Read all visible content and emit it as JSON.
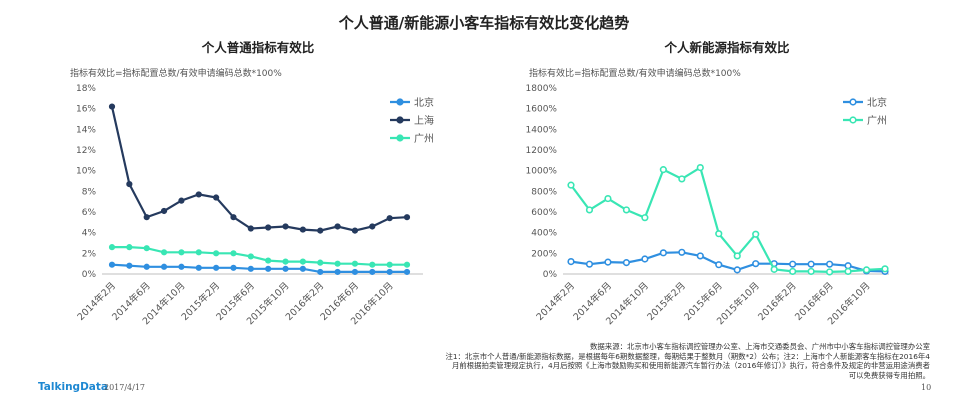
{
  "page_title": "个人普通/新能源小客车指标有效比变化趋势",
  "chart_data": [
    {
      "type": "line",
      "title": "个人普通指标有效比",
      "formula": "指标有效比=指标配置总数/有效申请编码总数*100%",
      "y_unit": "%",
      "ylim": [
        0,
        18
      ],
      "y_ticks": [
        0,
        2,
        4,
        6,
        8,
        10,
        12,
        14,
        16,
        18
      ],
      "grid": false,
      "legend_position": "top-right",
      "x_tick_labels": [
        "2014年2月",
        "2014年6月",
        "2014年10月",
        "2015年2月",
        "2015年6月",
        "2015年10月",
        "2016年2月",
        "2016年6月",
        "2016年10月"
      ],
      "series": [
        {
          "name": "北京",
          "color": "#2f8fe0",
          "values": [
            0.9,
            0.8,
            0.7,
            0.7,
            0.7,
            0.6,
            0.6,
            0.6,
            0.5,
            0.5,
            0.5,
            0.5,
            0.2,
            0.2,
            0.2,
            0.2,
            0.2,
            0.2
          ]
        },
        {
          "name": "上海",
          "color": "#253a5e",
          "values": [
            16.2,
            8.7,
            5.5,
            6.1,
            7.1,
            7.7,
            7.4,
            5.5,
            4.4,
            4.5,
            4.6,
            4.3,
            4.2,
            4.6,
            4.2,
            4.6,
            5.4,
            5.5
          ]
        },
        {
          "name": "广州",
          "color": "#39e6b4",
          "values": [
            2.6,
            2.6,
            2.5,
            2.1,
            2.1,
            2.1,
            2.0,
            2.0,
            1.7,
            1.3,
            1.2,
            1.2,
            1.1,
            1.0,
            1.0,
            0.9,
            0.9,
            0.9
          ]
        }
      ]
    },
    {
      "type": "line",
      "title": "个人新能源指标有效比",
      "formula": "指标有效比=指标配置总数/有效申请编码总数*100%",
      "y_unit": "%",
      "ylim": [
        0,
        1800
      ],
      "y_ticks": [
        0,
        200,
        400,
        600,
        800,
        1000,
        1200,
        1400,
        1600,
        1800
      ],
      "grid": false,
      "legend_position": "top-right",
      "x_tick_labels": [
        "2014年2月",
        "2014年6月",
        "2014年10月",
        "2015年2月",
        "2015年6月",
        "2015年10月",
        "2016年2月",
        "2016年6月",
        "2016年10月"
      ],
      "series": [
        {
          "name": "北京",
          "color": "#2f8fe0",
          "values": [
            120,
            95,
            115,
            110,
            145,
            205,
            210,
            175,
            90,
            40,
            100,
            100,
            95,
            95,
            95,
            80,
            30,
            25
          ]
        },
        {
          "name": "广州",
          "color": "#39e6b4",
          "values": [
            860,
            620,
            730,
            620,
            545,
            1010,
            920,
            1030,
            390,
            175,
            385,
            45,
            25,
            25,
            20,
            25,
            40,
            50
          ]
        }
      ]
    }
  ],
  "notes": {
    "line1": "数据来源：北京市小客车指标调控管理办公室、上海市交通委员会、广州市中小客车指标调控管理办公室",
    "line2": "注1：北京市个人普通/新能源指标数据，是根据每年6期数据整理，每期结果于整数月（期数*2）公布；注2：上海市个人新能源客车指标在2016年4",
    "line3": "月前根据拍卖管理规定执行，4月后按照《上海市鼓励购买和使用新能源汽车暂行办法（2016年修订）》执行，符合条件及规定的非营运用途消费者",
    "line4": "可以免费获得专用拍照。"
  },
  "footer": {
    "logo": "TalkingData",
    "date": "2017/4/17",
    "page": "10"
  }
}
